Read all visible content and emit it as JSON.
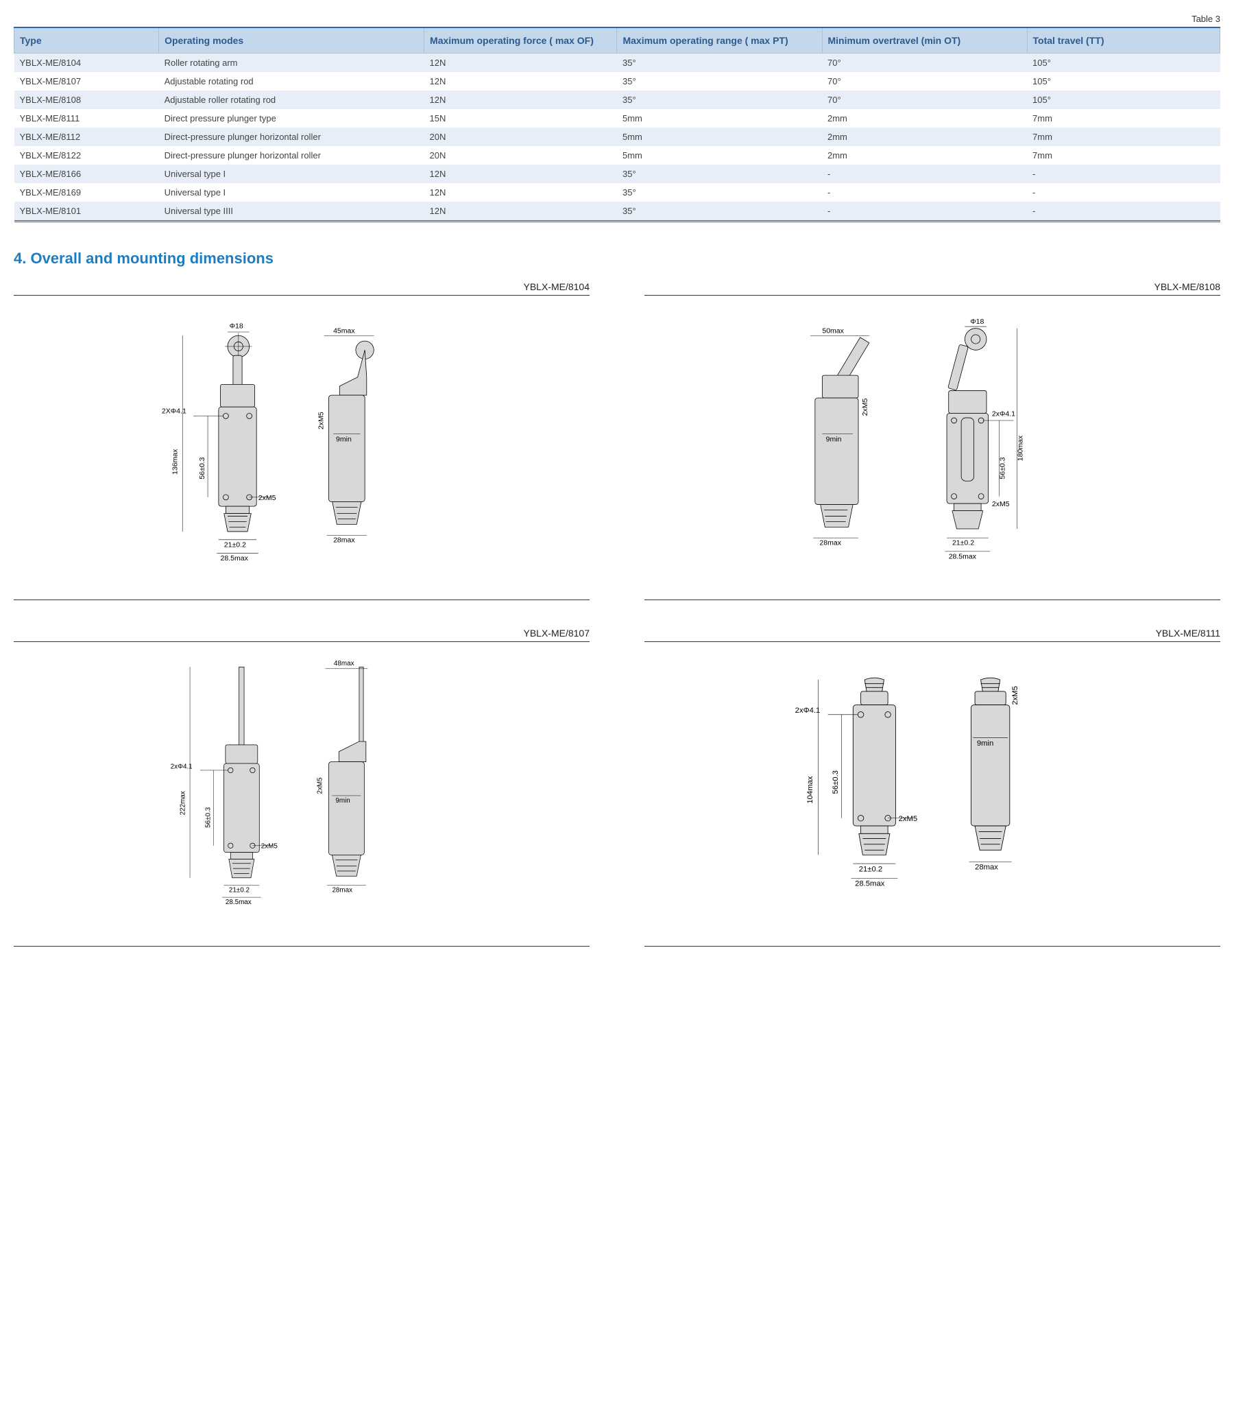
{
  "table": {
    "caption": "Table 3",
    "columns": [
      "Type",
      "Operating modes",
      "Maximum operating force ( max OF)",
      "Maximum operating range ( max PT)",
      "Minimum overtravel (min OT)",
      "Total travel (TT)"
    ],
    "rows": [
      [
        "YBLX-ME/8104",
        "Roller rotating arm",
        "12N",
        "35°",
        "70°",
        "105°"
      ],
      [
        "YBLX-ME/8107",
        "Adjustable rotating rod",
        "12N",
        "35°",
        "70°",
        "105°"
      ],
      [
        "YBLX-ME/8108",
        "Adjustable roller rotating rod",
        "12N",
        "35°",
        "70°",
        "105°"
      ],
      [
        "YBLX-ME/8111",
        "Direct pressure plunger type",
        "15N",
        "5mm",
        "2mm",
        "7mm"
      ],
      [
        "YBLX-ME/8112",
        "Direct-pressure plunger horizontal roller",
        "20N",
        "5mm",
        "2mm",
        "7mm"
      ],
      [
        "YBLX-ME/8122",
        "Direct-pressure plunger horizontal roller",
        "20N",
        "5mm",
        "2mm",
        "7mm"
      ],
      [
        "YBLX-ME/8166",
        "Universal type I",
        "12N",
        "35°",
        "-",
        "-"
      ],
      [
        "YBLX-ME/8169",
        "Universal type I",
        "12N",
        "35°",
        "-",
        "-"
      ],
      [
        "YBLX-ME/8101",
        "Universal type IIII",
        "12N",
        "35°",
        "-",
        "-"
      ]
    ]
  },
  "section_title": "4. Overall and mounting dimensions",
  "drawings": [
    {
      "title": "YBLX-ME/8104",
      "dims": {
        "phi18": "Φ18",
        "w45": "45max",
        "h136": "136max",
        "h56": "56±0.3",
        "h9": "9min",
        "holes": "2XΦ4.1",
        "m5": "2xM5",
        "m5b": "2xM5",
        "w21": "21±0.2",
        "w285": "28.5max",
        "w28": "28max"
      }
    },
    {
      "title": "YBLX-ME/8108",
      "dims": {
        "phi18": "Φ18",
        "w50": "50max",
        "h180": "180max",
        "h56": "56±0.3",
        "h9": "9min",
        "holes": "2xΦ4.1",
        "m5": "2xM5",
        "m5b": "2xM5",
        "w21": "21±0.2",
        "w285": "28.5max",
        "w28": "28max"
      }
    },
    {
      "title": "YBLX-ME/8107",
      "dims": {
        "w48": "48max",
        "h222": "222max",
        "h56": "56±0.3",
        "h9": "9min",
        "holes": "2xΦ4.1",
        "m5": "2xM5",
        "m5b": "2xM5",
        "w21": "21±0.2",
        "w285": "28.5max",
        "w28": "28max"
      }
    },
    {
      "title": "YBLX-ME/8111",
      "dims": {
        "h104": "104max",
        "h56": "56±0.3",
        "h9": "9min",
        "holes": "2xΦ4.1",
        "m5": "2xM5",
        "m5b": "2xM5",
        "w21": "21±0.2",
        "w285": "28.5max",
        "w28": "28max"
      }
    }
  ],
  "colors": {
    "header_bg": "#c5d7ea",
    "header_text": "#2a5a8e",
    "row_odd": "#e7eef7",
    "row_even": "#ffffff",
    "border": "#2a6aa8",
    "section_title": "#1d7dc2",
    "part_fill": "#d8d8d8"
  }
}
